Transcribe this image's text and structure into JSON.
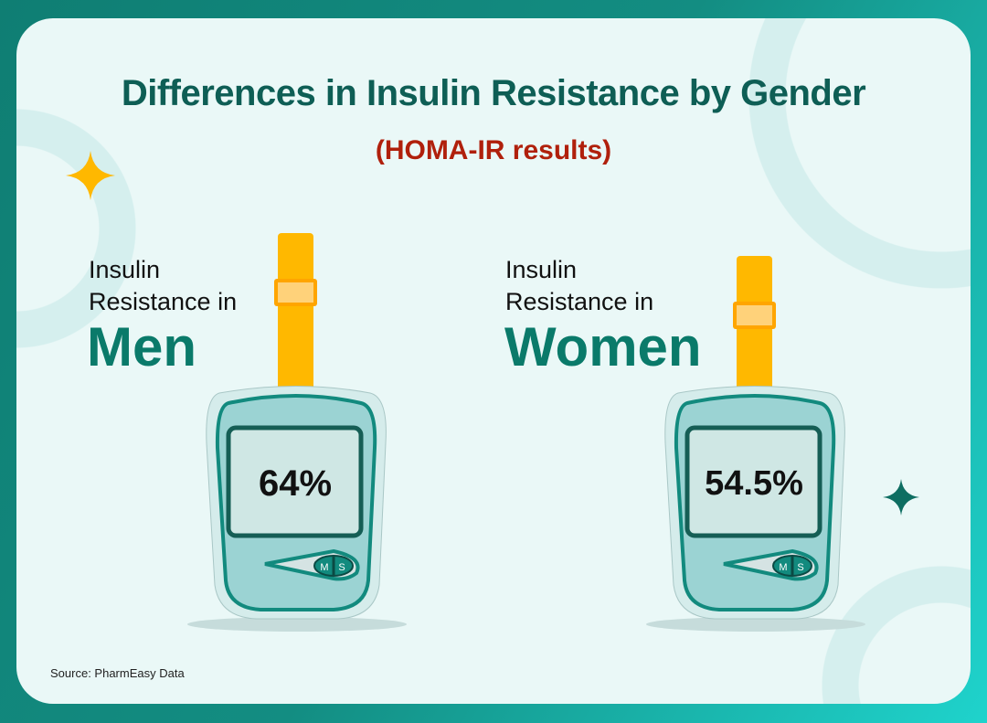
{
  "title": "Differences in Insulin Resistance by Gender",
  "subtitle": "(HOMA-IR results)",
  "men": {
    "label_line1": "Insulin",
    "label_line2": "Resistance in",
    "group": "Men",
    "value": "64%",
    "buttons": [
      "M",
      "S"
    ]
  },
  "women": {
    "label_line1": "Insulin",
    "label_line2": "Resistance in",
    "group": "Women",
    "value": "54.5%",
    "buttons": [
      "M",
      "S"
    ]
  },
  "source": "Source: PharmEasy Data",
  "colors": {
    "title": "#0e5e55",
    "subtitle": "#b0200c",
    "accent": "#0a7a6a",
    "strip": "#ffb800",
    "sparkle_yellow": "#ffb800",
    "sparkle_teal": "#0e6e62"
  }
}
